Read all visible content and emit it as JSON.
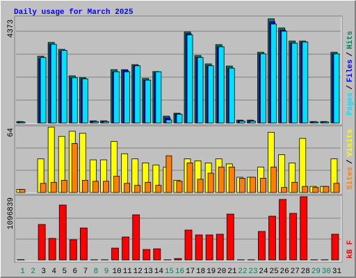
{
  "title": "Daily usage for March 2025",
  "legend_separator": "/",
  "chart_data": [
    {
      "type": "bar",
      "ylim": [
        0,
        4373
      ],
      "yticks": [
        4373
      ],
      "series": [
        {
          "name": "Hits",
          "color": "#00805c",
          "values": [
            60,
            0,
            2800,
            3380,
            3090,
            1980,
            1900,
            90,
            90,
            2240,
            2240,
            2450,
            1870,
            2160,
            290,
            410,
            3820,
            2830,
            2480,
            3290,
            2390,
            120,
            120,
            2970,
            4373,
            3990,
            3440,
            3440,
            60,
            60,
            2970
          ]
        },
        {
          "name": "Files",
          "color": "#0000ff",
          "values": [
            50,
            0,
            2700,
            3300,
            3000,
            1900,
            1850,
            70,
            70,
            2150,
            2200,
            2400,
            1800,
            2100,
            220,
            380,
            3750,
            2750,
            2400,
            3200,
            2300,
            100,
            100,
            2900,
            4250,
            3900,
            3350,
            3380,
            50,
            50,
            2900
          ]
        },
        {
          "name": "Pages",
          "color": "#00e0ff",
          "values": [
            40,
            0,
            2750,
            3300,
            3050,
            1900,
            1850,
            60,
            60,
            2150,
            2150,
            2400,
            1800,
            2150,
            130,
            370,
            3700,
            2750,
            2400,
            3200,
            2300,
            80,
            80,
            2900,
            4150,
            3850,
            3350,
            3400,
            40,
            40,
            2900
          ]
        }
      ]
    },
    {
      "type": "bar",
      "ylim": [
        0,
        64
      ],
      "yticks": [
        64
      ],
      "series": [
        {
          "name": "Visits",
          "color": "#ffff00",
          "values": [
            3,
            0,
            33,
            64,
            55,
            60,
            58,
            32,
            32,
            50,
            38,
            33,
            29,
            27,
            25,
            12,
            33,
            31,
            29,
            33,
            28,
            15,
            15,
            25,
            59,
            37,
            29,
            53,
            6,
            6,
            33
          ]
        },
        {
          "name": "Sites",
          "color": "#ff8000",
          "values": [
            3,
            0,
            9,
            10,
            12,
            48,
            12,
            11,
            11,
            16,
            9,
            7,
            10,
            7,
            36,
            11,
            29,
            13,
            19,
            25,
            25,
            14,
            15,
            14,
            25,
            5,
            10,
            6,
            5,
            6,
            9
          ]
        }
      ]
    },
    {
      "type": "bar",
      "ylim": [
        0,
        1096839
      ],
      "yticks": [
        1096839
      ],
      "categories": [
        "1",
        "2",
        "3",
        "4",
        "5",
        "6",
        "7",
        "8",
        "9",
        "10",
        "11",
        "12",
        "13",
        "14",
        "15",
        "16",
        "17",
        "18",
        "19",
        "20",
        "21",
        "22",
        "23",
        "24",
        "25",
        "26",
        "27",
        "28",
        "29",
        "30",
        "31"
      ],
      "category_colors": [
        "#00805c",
        "#00805c",
        "#000000",
        "#000000",
        "#000000",
        "#000000",
        "#000000",
        "#00805c",
        "#00805c",
        "#000000",
        "#000000",
        "#000000",
        "#000000",
        "#000000",
        "#00805c",
        "#00805c",
        "#000000",
        "#000000",
        "#000000",
        "#000000",
        "#000000",
        "#00805c",
        "#00805c",
        "#000000",
        "#000000",
        "#000000",
        "#000000",
        "#000000",
        "#00805c",
        "#00805c",
        "#000000"
      ],
      "series": [
        {
          "name": "kB F",
          "color": "#ff0000",
          "values": [
            5000,
            0,
            615000,
            374000,
            952000,
            350000,
            554000,
            3000,
            3000,
            205000,
            398000,
            783000,
            181000,
            193000,
            3000,
            24000,
            518000,
            434000,
            434000,
            446000,
            795000,
            3000,
            3000,
            494000,
            759000,
            1049000,
            808000,
            1096839,
            3000,
            3000,
            446000
          ]
        }
      ]
    }
  ]
}
